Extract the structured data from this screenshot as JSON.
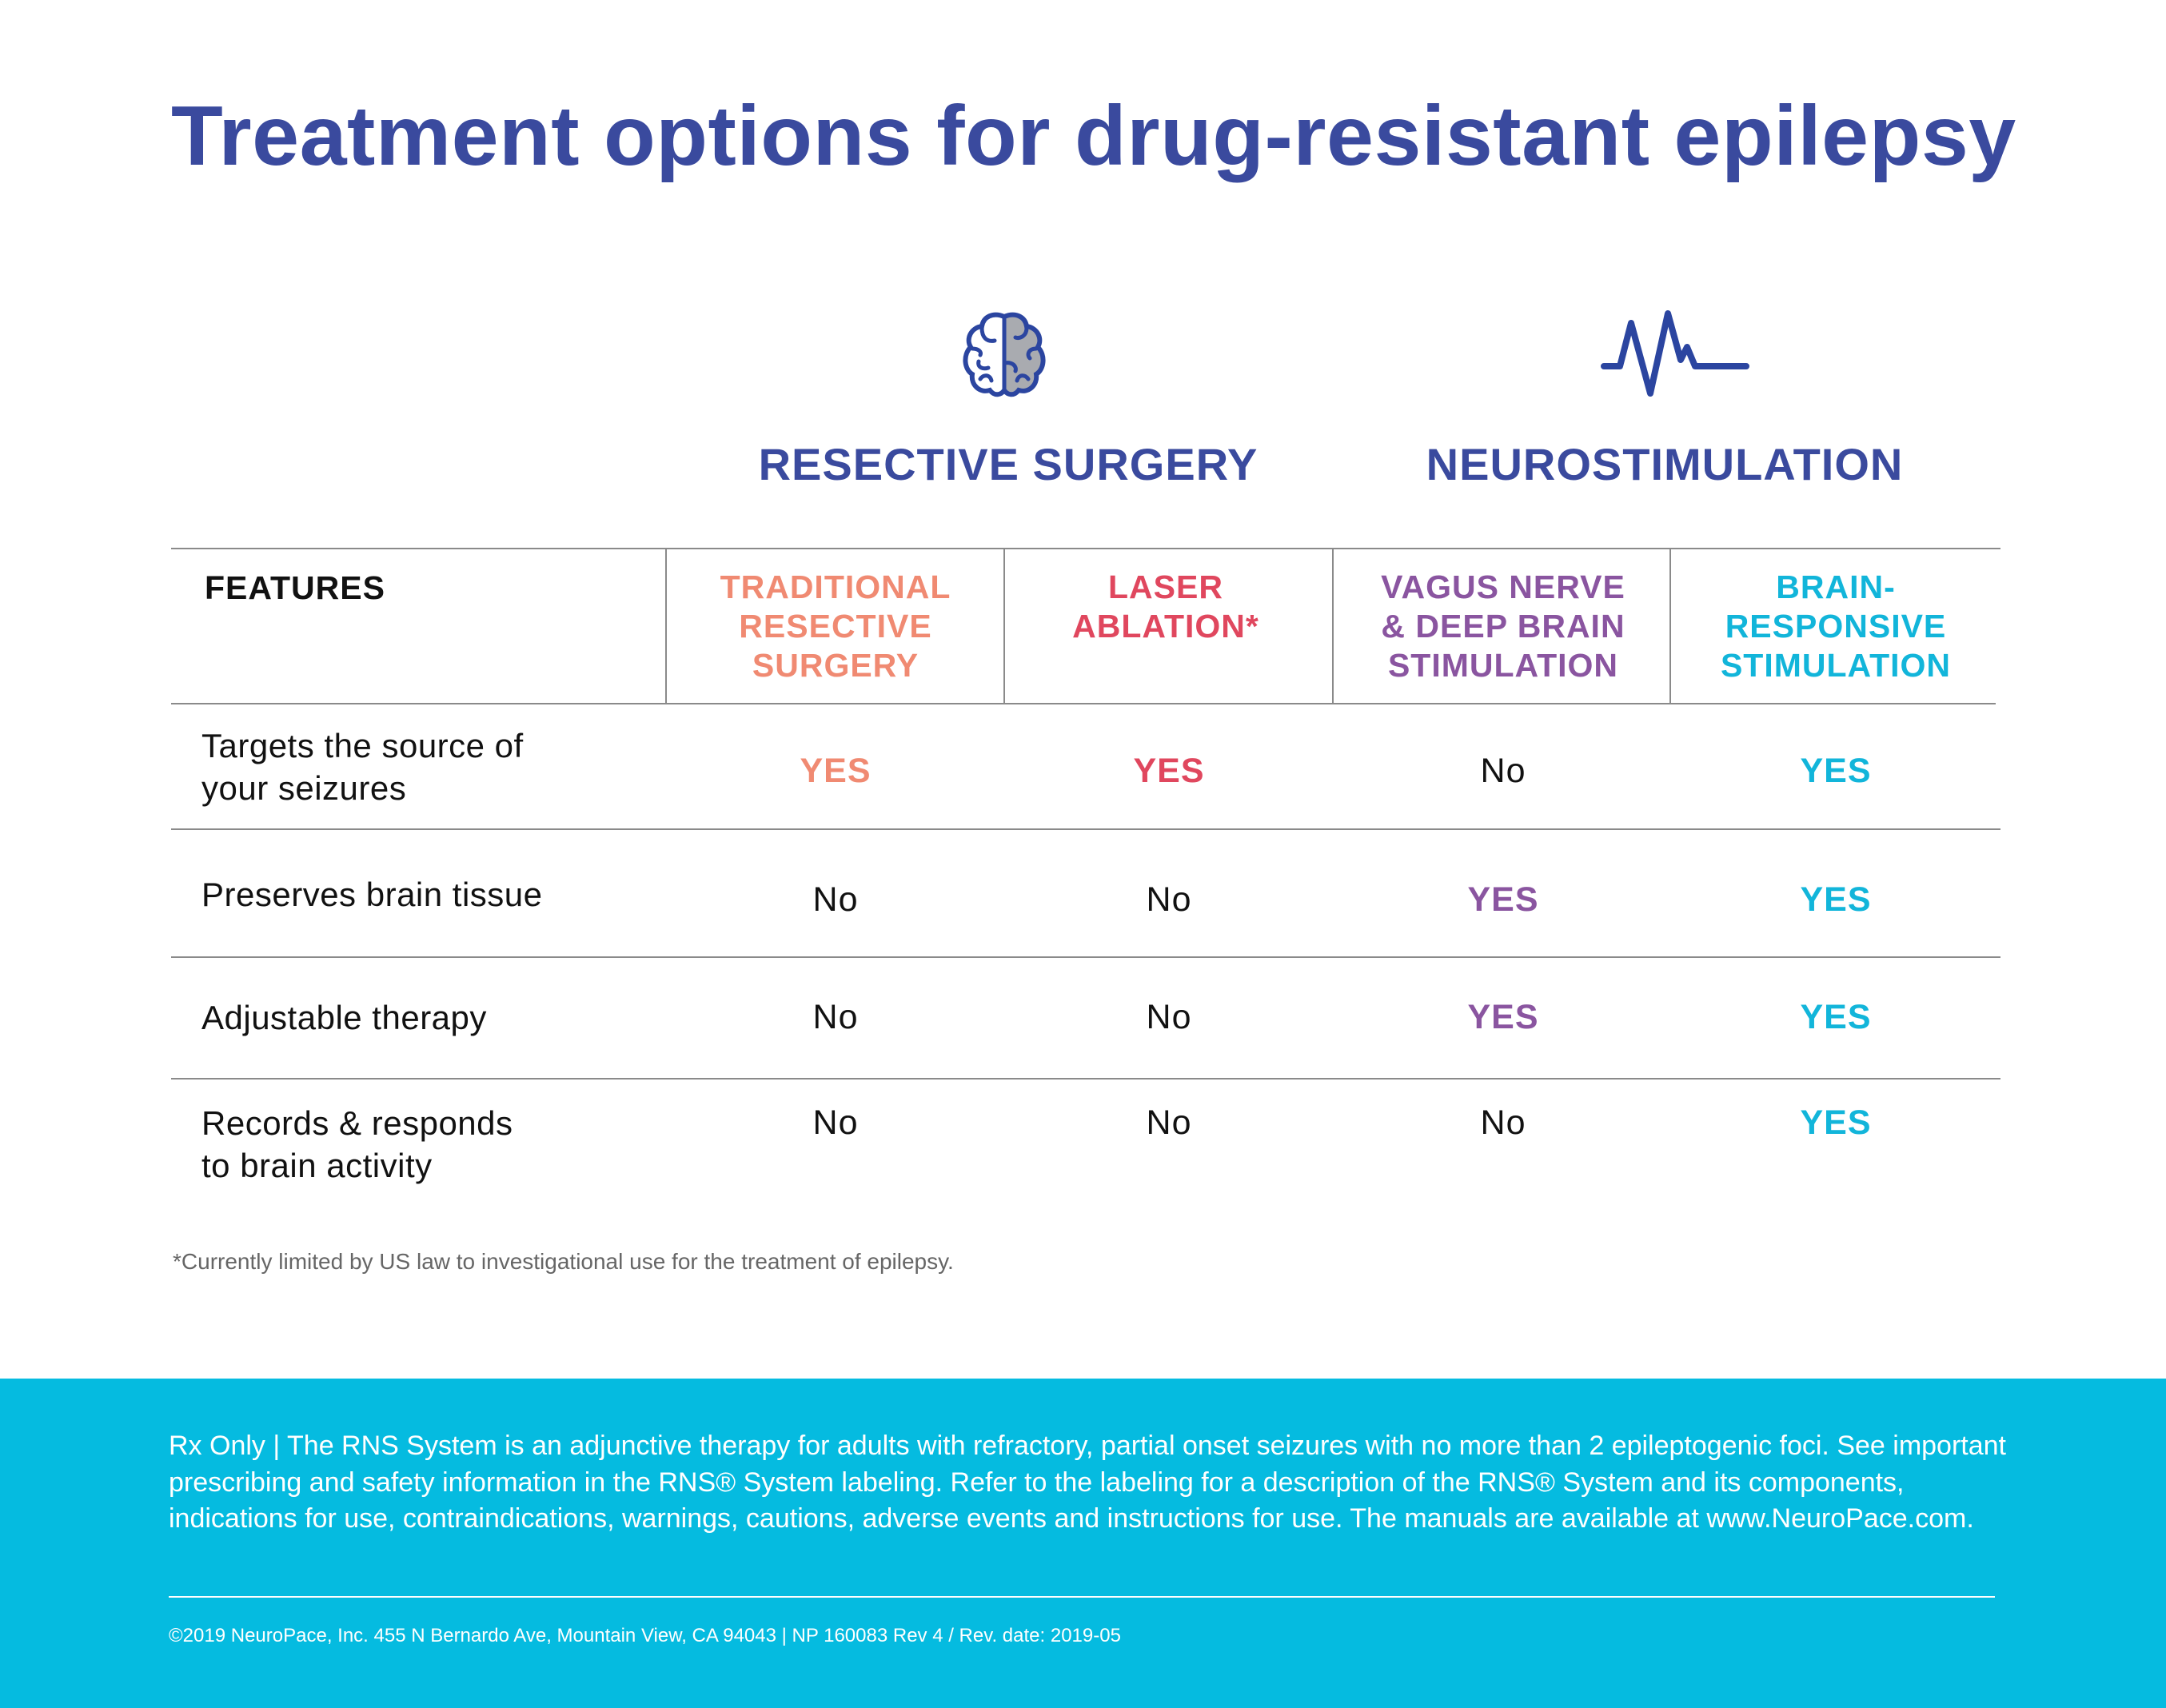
{
  "title": "Treatment options for drug-resistant epilepsy",
  "groups": [
    {
      "label": "RESECTIVE SURGERY",
      "icon": "brain-icon"
    },
    {
      "label": "NEUROSTIMULATION",
      "icon": "pulse-waveform-icon"
    }
  ],
  "table": {
    "features_header": "FEATURES",
    "columns": [
      {
        "label": "TRADITIONAL\nRESECTIVE\nSURGERY",
        "color": "#f08a72"
      },
      {
        "label": "LASER\nABLATION*",
        "color": "#e0475e"
      },
      {
        "label": "VAGUS NERVE\n& DEEP BRAIN\nSTIMULATION",
        "color": "#8a55a0"
      },
      {
        "label": "BRAIN-\nRESPONSIVE\nSTIMULATION",
        "color": "#12b5da"
      }
    ],
    "rows": [
      {
        "label": "Targets the source of\nyour seizures",
        "values": [
          "YES",
          "YES",
          "No",
          "YES"
        ]
      },
      {
        "label": "Preserves brain tissue",
        "values": [
          "No",
          "No",
          "YES",
          "YES"
        ]
      },
      {
        "label": "Adjustable therapy",
        "values": [
          "No",
          "No",
          "YES",
          "YES"
        ]
      },
      {
        "label": "Records & responds\nto brain activity",
        "values": [
          "No",
          "No",
          "No",
          "YES"
        ]
      }
    ]
  },
  "footnote": "*Currently limited by US law to investigational use for the treatment of epilepsy.",
  "footer": {
    "disclaimer": "Rx Only | The RNS System is an adjunctive therapy for adults with refractory, partial onset seizures with no more than 2 epileptogenic foci. See important prescribing and safety information in the RNS® System labeling. Refer to the labeling for a description of the RNS® System and its components, indications for use, contraindications, warnings, cautions, adverse events and instructions for use. The manuals are available at www.NeuroPace.com.",
    "copyright": "©2019 NeuroPace, Inc. 455 N Bernardo Ave, Mountain View, CA 94043 | NP 160083 Rev 4 / Rev. date: 2019-05",
    "background_color": "#05bbe0"
  },
  "colors": {
    "title": "#3a4a9e"
  }
}
